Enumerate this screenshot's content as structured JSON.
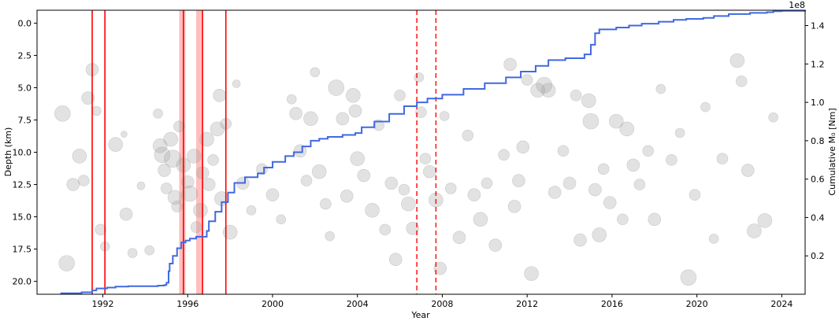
{
  "chart_data": {
    "type": "scatter",
    "xlabel": "Year",
    "ylabel": "Depth (km)",
    "y2label": "Cumulative M₀ [Nm]",
    "y2_exponent_label": "1e8",
    "xlim": [
      1988.9,
      2025.1
    ],
    "ylim": [
      21.0,
      -1.0
    ],
    "y2lim": [
      0.0,
      1.48
    ],
    "xticks": [
      1992,
      1996,
      2000,
      2004,
      2008,
      2012,
      2016,
      2020,
      2024
    ],
    "xticklabels": [
      "1992",
      "1996",
      "2000",
      "2004",
      "2008",
      "2012",
      "2016",
      "2020",
      "2024"
    ],
    "yticks": [
      0.0,
      2.5,
      5.0,
      7.5,
      10.0,
      12.5,
      15.0,
      17.5,
      20.0
    ],
    "yticklabels": [
      "0.0",
      "2.5",
      "5.0",
      "7.5",
      "10.0",
      "12.5",
      "15.0",
      "17.5",
      "20.0"
    ],
    "y2ticks": [
      0.2,
      0.4,
      0.6,
      0.8,
      1.0,
      1.2,
      1.4
    ],
    "y2ticklabels": [
      "0.2",
      "0.4",
      "0.6",
      "0.8",
      "1.0",
      "1.2",
      "1.4"
    ],
    "grid": false,
    "colors": {
      "cumulative_line": "#4169e1",
      "events": "#a0a0a0",
      "markers": "#ff0000"
    },
    "red_solid_lines": [
      1991.5,
      1992.1,
      1995.8,
      1996.7,
      1997.8
    ],
    "red_shaded_spans": [
      [
        1995.6,
        1995.9
      ],
      [
        1996.4,
        1996.7
      ]
    ],
    "red_dashed_lines": [
      2006.8,
      2007.7
    ],
    "cumulative_moment": {
      "x": [
        1990.0,
        1991.0,
        1991.5,
        1991.7,
        1992.2,
        1992.6,
        1993.2,
        1994.6,
        1994.9,
        1995.0,
        1995.1,
        1995.15,
        1995.3,
        1995.5,
        1995.7,
        1995.9,
        1996.1,
        1996.4,
        1996.7,
        1996.9,
        1997.0,
        1997.3,
        1997.6,
        1997.9,
        1998.2,
        1998.7,
        1999.3,
        1999.6,
        2000.0,
        2000.6,
        2001.0,
        2001.4,
        2001.8,
        2002.2,
        2002.6,
        2003.3,
        2003.9,
        2004.2,
        2004.8,
        2005.5,
        2006.2,
        2006.8,
        2007.3,
        2008.0,
        2009.0,
        2010.0,
        2011.0,
        2011.7,
        2012.4,
        2013.0,
        2013.8,
        2014.7,
        2015.0,
        2015.2,
        2015.4,
        2015.8,
        2016.2,
        2016.8,
        2017.4,
        2018.2,
        2018.9,
        2019.5,
        2020.3,
        2020.8,
        2021.5,
        2022.5,
        2023.3,
        2023.6,
        2024.0,
        2025.1
      ],
      "y": [
        0.005,
        0.01,
        0.02,
        0.03,
        0.035,
        0.04,
        0.042,
        0.045,
        0.048,
        0.06,
        0.12,
        0.16,
        0.2,
        0.24,
        0.27,
        0.28,
        0.29,
        0.3,
        0.3,
        0.33,
        0.38,
        0.43,
        0.48,
        0.53,
        0.58,
        0.61,
        0.63,
        0.66,
        0.69,
        0.72,
        0.74,
        0.77,
        0.8,
        0.81,
        0.82,
        0.83,
        0.84,
        0.87,
        0.9,
        0.94,
        0.98,
        1.0,
        1.02,
        1.04,
        1.07,
        1.1,
        1.13,
        1.16,
        1.19,
        1.22,
        1.23,
        1.25,
        1.3,
        1.36,
        1.38,
        1.38,
        1.39,
        1.4,
        1.41,
        1.42,
        1.43,
        1.435,
        1.44,
        1.45,
        1.46,
        1.466,
        1.47,
        1.475,
        1.477,
        1.48
      ]
    },
    "events": [
      [
        1990.1,
        7.0,
        10
      ],
      [
        1990.3,
        18.6,
        10
      ],
      [
        1990.6,
        12.5,
        8
      ],
      [
        1990.9,
        10.3,
        9
      ],
      [
        1991.1,
        12.2,
        7
      ],
      [
        1991.3,
        5.8,
        8
      ],
      [
        1991.5,
        3.6,
        8
      ],
      [
        1991.7,
        6.8,
        6
      ],
      [
        1991.9,
        16.0,
        7
      ],
      [
        1992.1,
        17.3,
        6
      ],
      [
        1992.6,
        9.4,
        9
      ],
      [
        1993.0,
        8.6,
        4
      ],
      [
        1993.1,
        14.8,
        8
      ],
      [
        1993.4,
        17.8,
        6
      ],
      [
        1993.8,
        12.6,
        5
      ],
      [
        1994.2,
        17.6,
        6
      ],
      [
        1994.6,
        7.0,
        6
      ],
      [
        1994.7,
        9.5,
        9
      ],
      [
        1994.8,
        10.2,
        10
      ],
      [
        1994.9,
        11.4,
        8
      ],
      [
        1995.0,
        12.8,
        7
      ],
      [
        1995.2,
        9.0,
        9
      ],
      [
        1995.3,
        10.5,
        11
      ],
      [
        1995.4,
        13.5,
        9
      ],
      [
        1995.5,
        14.2,
        7
      ],
      [
        1995.6,
        8.0,
        7
      ],
      [
        1995.8,
        11.0,
        9
      ],
      [
        1996.0,
        12.3,
        8
      ],
      [
        1996.1,
        13.2,
        10
      ],
      [
        1996.3,
        10.3,
        9
      ],
      [
        1996.4,
        15.8,
        7
      ],
      [
        1996.6,
        14.5,
        9
      ],
      [
        1996.7,
        11.6,
        8
      ],
      [
        1996.9,
        9.0,
        9
      ],
      [
        1997.0,
        12.5,
        8
      ],
      [
        1997.2,
        10.6,
        7
      ],
      [
        1997.4,
        8.2,
        9
      ],
      [
        1997.5,
        5.6,
        8
      ],
      [
        1997.6,
        13.6,
        9
      ],
      [
        1997.8,
        7.8,
        7
      ],
      [
        1998.0,
        16.2,
        9
      ],
      [
        1998.3,
        4.7,
        5
      ],
      [
        1998.6,
        12.4,
        8
      ],
      [
        1999.0,
        14.5,
        6
      ],
      [
        1999.5,
        11.3,
        7
      ],
      [
        2000.0,
        13.3,
        8
      ],
      [
        2000.4,
        15.2,
        6
      ],
      [
        2000.9,
        5.9,
        6
      ],
      [
        2001.1,
        7.0,
        8
      ],
      [
        2001.3,
        9.9,
        8
      ],
      [
        2001.6,
        12.2,
        7
      ],
      [
        2001.8,
        7.4,
        9
      ],
      [
        2002.0,
        3.8,
        6
      ],
      [
        2002.2,
        11.5,
        9
      ],
      [
        2002.5,
        14.0,
        7
      ],
      [
        2002.7,
        16.5,
        6
      ],
      [
        2003.0,
        5.0,
        10
      ],
      [
        2003.3,
        7.4,
        8
      ],
      [
        2003.5,
        13.4,
        8
      ],
      [
        2003.8,
        5.6,
        9
      ],
      [
        2003.9,
        6.8,
        8
      ],
      [
        2004.0,
        10.5,
        9
      ],
      [
        2004.3,
        11.8,
        8
      ],
      [
        2004.7,
        14.5,
        9
      ],
      [
        2005.0,
        7.9,
        7
      ],
      [
        2005.3,
        16.0,
        7
      ],
      [
        2005.6,
        12.4,
        8
      ],
      [
        2005.8,
        18.3,
        8
      ],
      [
        2006.0,
        5.6,
        7
      ],
      [
        2006.2,
        12.9,
        7
      ],
      [
        2006.4,
        14.0,
        9
      ],
      [
        2006.6,
        15.9,
        8
      ],
      [
        2006.9,
        4.2,
        6
      ],
      [
        2007.0,
        6.9,
        7
      ],
      [
        2007.2,
        10.5,
        7
      ],
      [
        2007.4,
        11.5,
        8
      ],
      [
        2007.7,
        13.7,
        9
      ],
      [
        2007.9,
        19.0,
        8
      ],
      [
        2008.1,
        7.2,
        6
      ],
      [
        2008.4,
        12.8,
        7
      ],
      [
        2008.8,
        16.6,
        8
      ],
      [
        2009.2,
        8.7,
        7
      ],
      [
        2009.5,
        13.3,
        8
      ],
      [
        2009.8,
        15.2,
        9
      ],
      [
        2010.1,
        12.4,
        7
      ],
      [
        2010.5,
        17.2,
        8
      ],
      [
        2010.9,
        10.2,
        7
      ],
      [
        2011.2,
        3.2,
        8
      ],
      [
        2011.4,
        14.2,
        8
      ],
      [
        2011.6,
        12.2,
        8
      ],
      [
        2011.8,
        9.6,
        8
      ],
      [
        2012.0,
        4.4,
        7
      ],
      [
        2012.2,
        19.4,
        9
      ],
      [
        2012.5,
        5.2,
        9
      ],
      [
        2012.8,
        4.8,
        10
      ],
      [
        2013.0,
        5.2,
        9
      ],
      [
        2013.3,
        13.1,
        8
      ],
      [
        2013.7,
        9.9,
        7
      ],
      [
        2014.0,
        12.4,
        8
      ],
      [
        2014.3,
        5.6,
        7
      ],
      [
        2014.5,
        16.8,
        8
      ],
      [
        2014.9,
        6.0,
        9
      ],
      [
        2015.0,
        7.6,
        10
      ],
      [
        2015.2,
        12.9,
        8
      ],
      [
        2015.4,
        16.4,
        9
      ],
      [
        2015.6,
        11.3,
        7
      ],
      [
        2015.9,
        13.9,
        8
      ],
      [
        2016.2,
        7.6,
        9
      ],
      [
        2016.5,
        15.2,
        7
      ],
      [
        2016.7,
        8.2,
        9
      ],
      [
        2017.0,
        11.0,
        8
      ],
      [
        2017.3,
        12.5,
        7
      ],
      [
        2017.7,
        9.9,
        7
      ],
      [
        2018.0,
        15.2,
        8
      ],
      [
        2018.3,
        5.1,
        6
      ],
      [
        2018.8,
        10.6,
        7
      ],
      [
        2019.2,
        8.5,
        6
      ],
      [
        2019.6,
        19.7,
        10
      ],
      [
        2019.9,
        13.3,
        7
      ],
      [
        2020.4,
        6.5,
        6
      ],
      [
        2020.8,
        16.7,
        6
      ],
      [
        2021.2,
        10.5,
        7
      ],
      [
        2021.9,
        2.9,
        9
      ],
      [
        2022.1,
        4.5,
        7
      ],
      [
        2022.4,
        11.4,
        8
      ],
      [
        2022.7,
        16.1,
        9
      ],
      [
        2023.2,
        15.3,
        9
      ],
      [
        2023.6,
        7.3,
        6
      ]
    ]
  }
}
